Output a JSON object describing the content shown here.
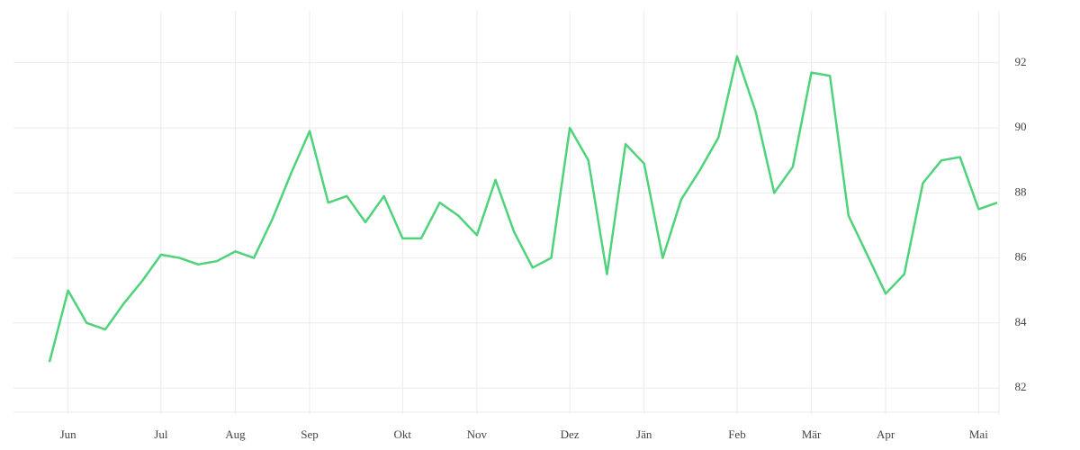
{
  "chart_data": {
    "type": "line",
    "categories": [
      null,
      "Jun",
      null,
      null,
      null,
      null,
      "Jul",
      null,
      null,
      null,
      "Aug",
      null,
      null,
      null,
      "Sep",
      null,
      null,
      null,
      null,
      "Okt",
      null,
      null,
      null,
      "Nov",
      null,
      null,
      null,
      null,
      "Dez",
      null,
      null,
      null,
      "Jän",
      null,
      null,
      null,
      null,
      "Feb",
      null,
      null,
      null,
      "Mär",
      null,
      null,
      null,
      "Apr",
      null,
      null,
      null,
      null,
      "Mai",
      null
    ],
    "series": [
      {
        "color": "#4ed37a",
        "values": [
          82.8,
          85.0,
          84.0,
          83.8,
          84.6,
          85.3,
          86.1,
          86.0,
          85.8,
          85.9,
          86.2,
          86.0,
          87.2,
          88.6,
          89.9,
          87.7,
          87.9,
          87.1,
          87.9,
          86.6,
          86.6,
          87.7,
          87.3,
          86.7,
          88.4,
          86.8,
          85.7,
          86.0,
          90.0,
          89.0,
          85.5,
          89.5,
          88.9,
          86.0,
          87.8,
          88.7,
          89.7,
          92.2,
          90.5,
          88.0,
          88.8,
          91.7,
          91.6,
          87.3,
          86.1,
          84.9,
          85.5,
          88.3,
          89.0,
          89.1,
          87.5,
          87.7
        ]
      }
    ],
    "ylim": [
      81.2,
      93.6
    ],
    "yticks": [
      82,
      84,
      86,
      88,
      90,
      92
    ],
    "grid": true
  }
}
